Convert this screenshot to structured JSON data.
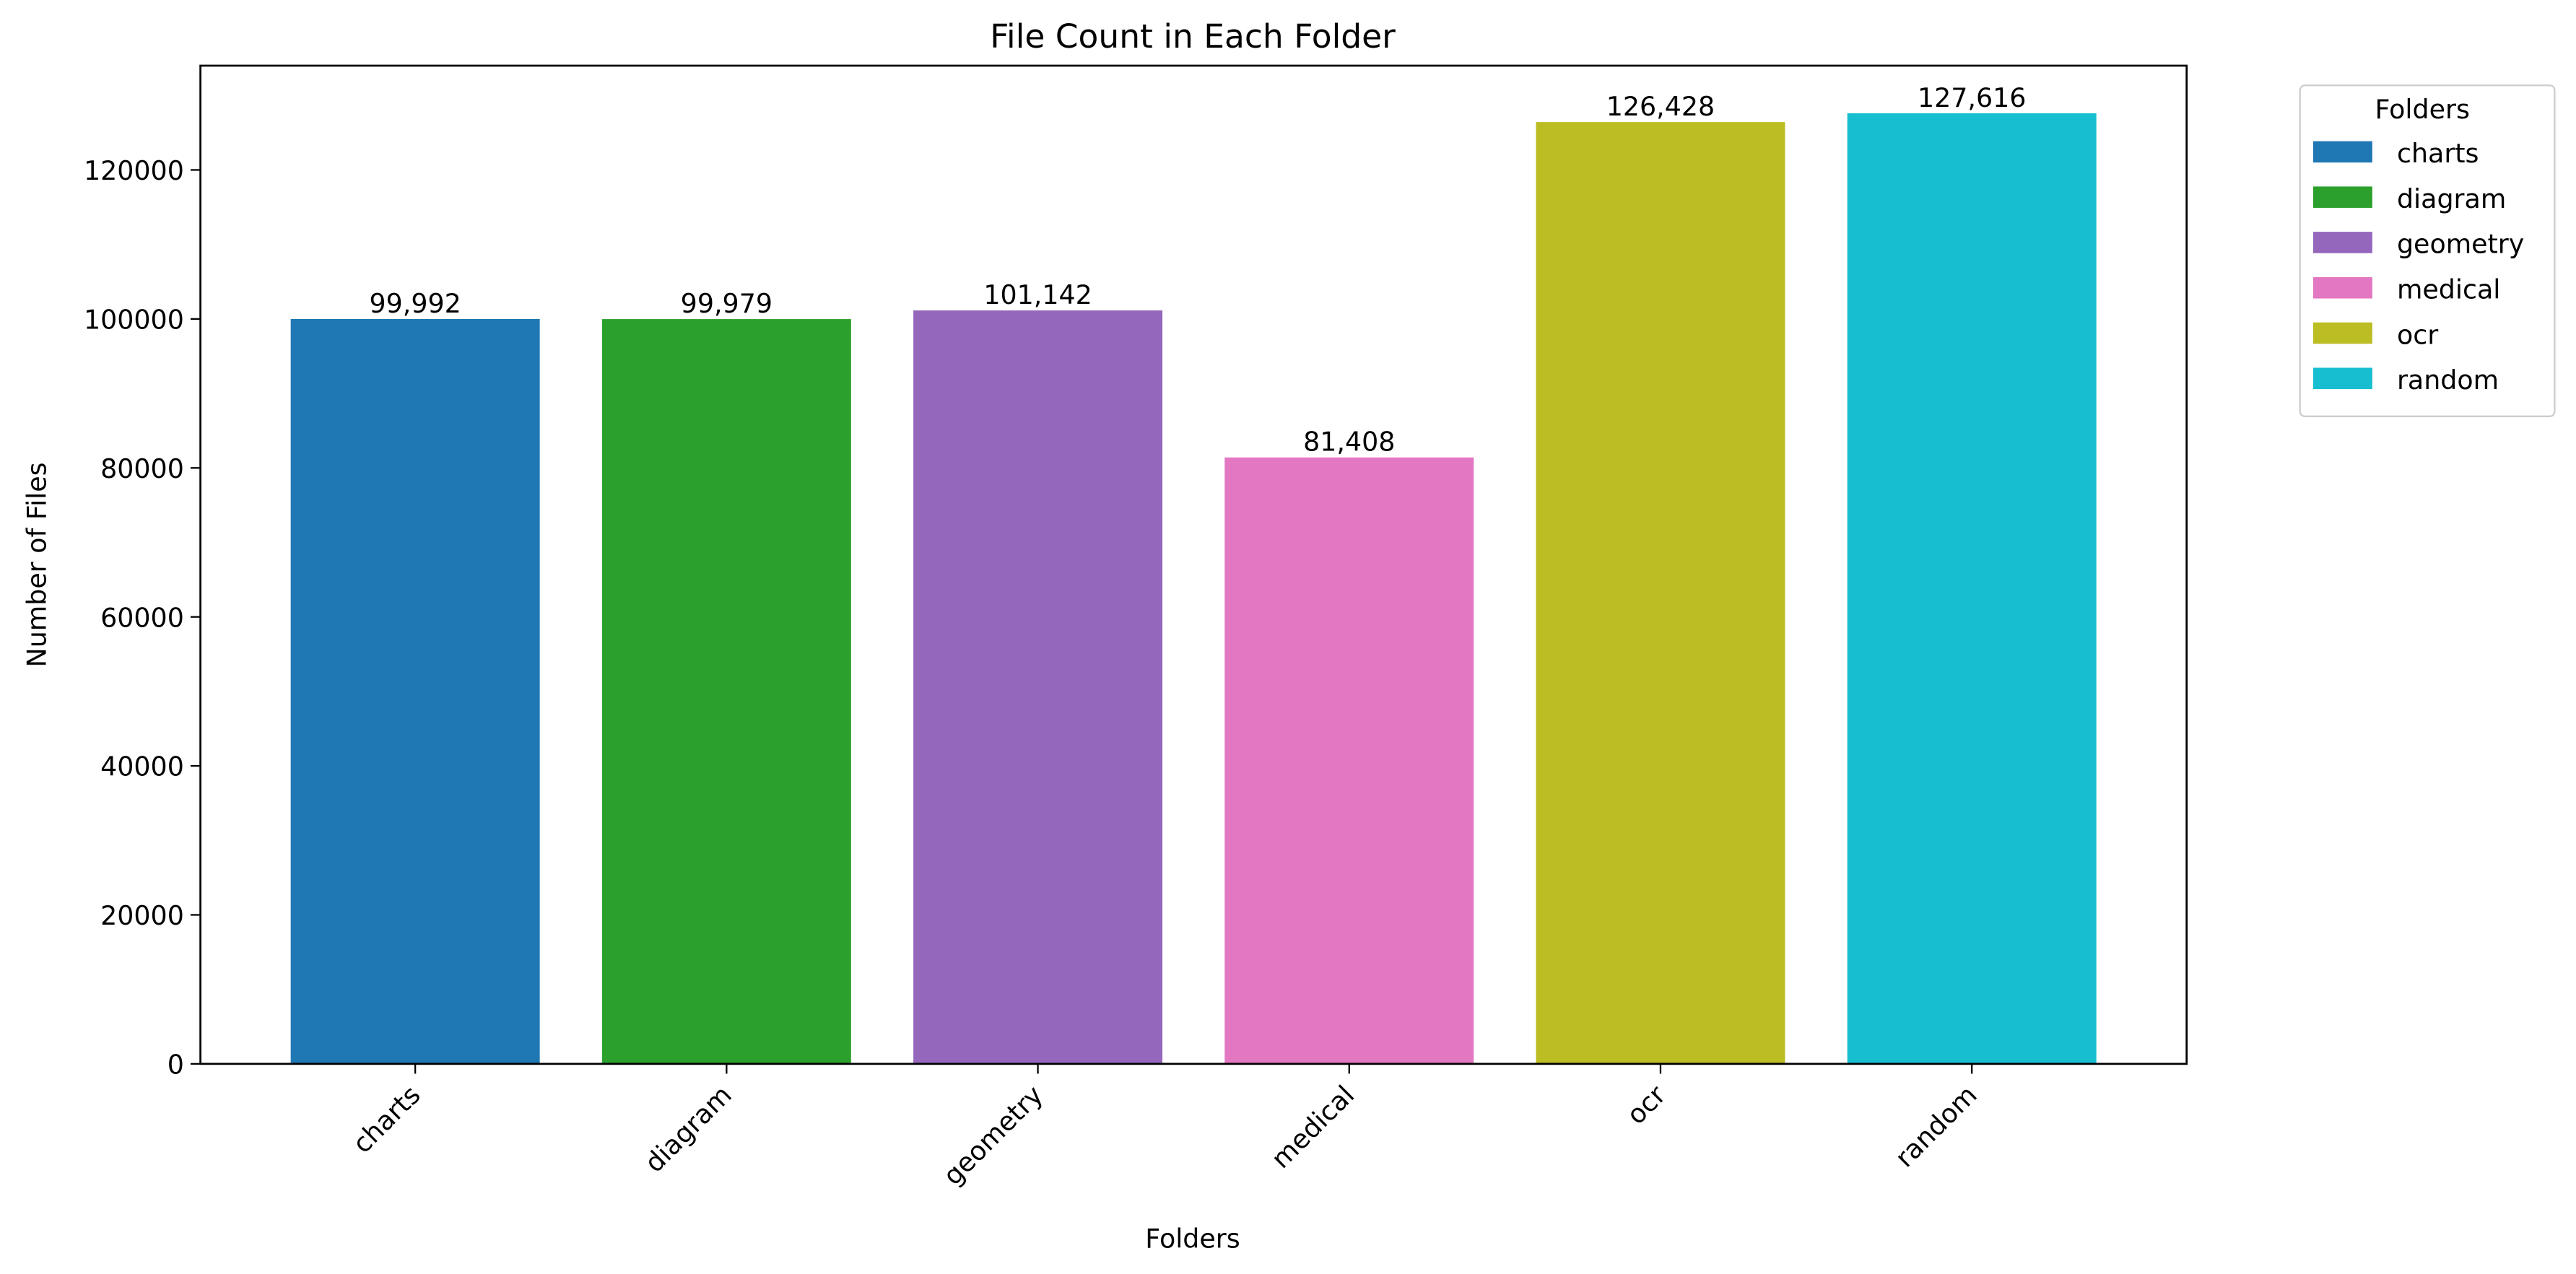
{
  "chart_data": {
    "type": "bar",
    "title": "File Count in Each Folder",
    "x_label": "Folders",
    "y_label": "Number of Files",
    "categories": [
      "charts",
      "diagram",
      "geometry",
      "medical",
      "ocr",
      "random"
    ],
    "values": [
      99992,
      99979,
      101142,
      81408,
      126428,
      127616
    ],
    "value_labels": [
      "99,992",
      "99,979",
      "101,142",
      "81,408",
      "126,428",
      "127,616"
    ],
    "colors": [
      "#1f77b4",
      "#2ca02c",
      "#9467bd",
      "#e377c2",
      "#bcbd22",
      "#17becf"
    ],
    "ylim": [
      0,
      134000
    ],
    "yticks": [
      0,
      20000,
      40000,
      60000,
      80000,
      100000,
      120000
    ],
    "legend_title": "Folders",
    "legend": "outside upper right"
  }
}
